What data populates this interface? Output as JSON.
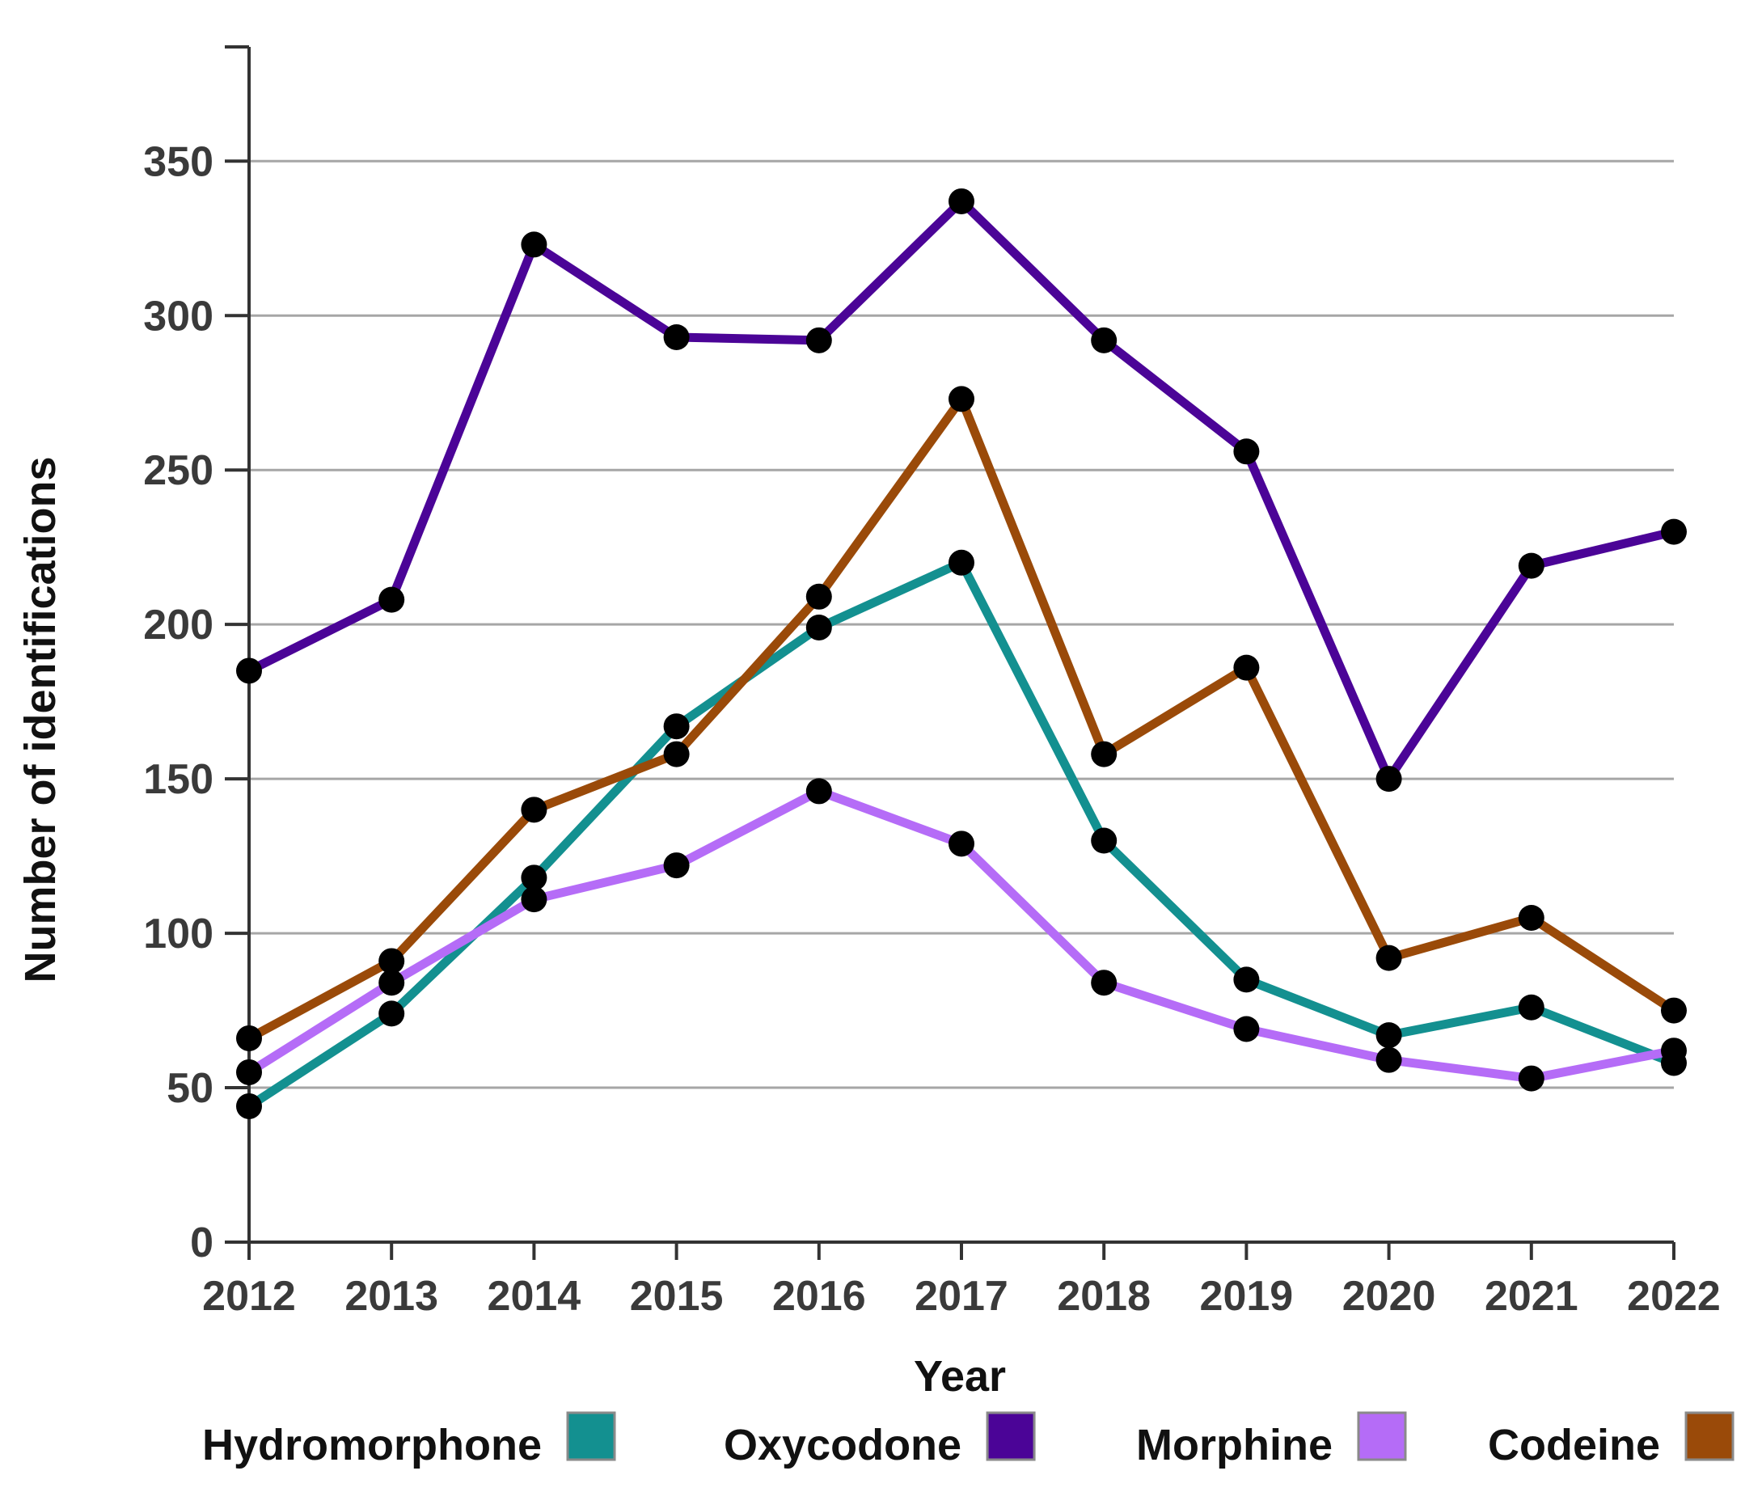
{
  "chart_data": {
    "type": "line",
    "title": "",
    "xlabel": "Year",
    "ylabel": "Number of identifications",
    "x": [
      "2012",
      "2013",
      "2014",
      "2015",
      "2016",
      "2017",
      "2018",
      "2019",
      "2020",
      "2021",
      "2022"
    ],
    "ylim": [
      0,
      387
    ],
    "yticks": [
      0,
      50,
      100,
      150,
      200,
      250,
      300,
      350
    ],
    "grid": true,
    "legend_position": "bottom",
    "series": [
      {
        "name": "Hydromorphone",
        "color": "#139090",
        "values": [
          44,
          74,
          118,
          167,
          199,
          220,
          130,
          85,
          67,
          76,
          58
        ]
      },
      {
        "name": "Oxycodone",
        "color": "#4b0497",
        "values": [
          185,
          208,
          323,
          293,
          292,
          337,
          292,
          256,
          150,
          219,
          230
        ]
      },
      {
        "name": "Morphine",
        "color": "#b56cf7",
        "values": [
          55,
          84,
          111,
          122,
          146,
          129,
          84,
          69,
          59,
          53,
          62
        ]
      },
      {
        "name": "Codeine",
        "color": "#9a4a09",
        "values": [
          66,
          91,
          140,
          158,
          209,
          273,
          158,
          186,
          92,
          105,
          75
        ]
      }
    ],
    "marker_color": "#000000",
    "grid_color": "#a6a6a6",
    "axis_color": "#333333"
  }
}
